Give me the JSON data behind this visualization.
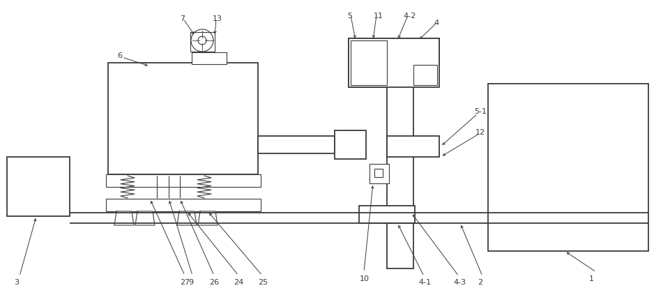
{
  "bg_color": "#ffffff",
  "line_color": "#3a3a3a",
  "lw_main": 1.3,
  "lw_thin": 0.8,
  "fig_width": 9.62,
  "fig_height": 4.13,
  "label_fontsize": 8.0
}
